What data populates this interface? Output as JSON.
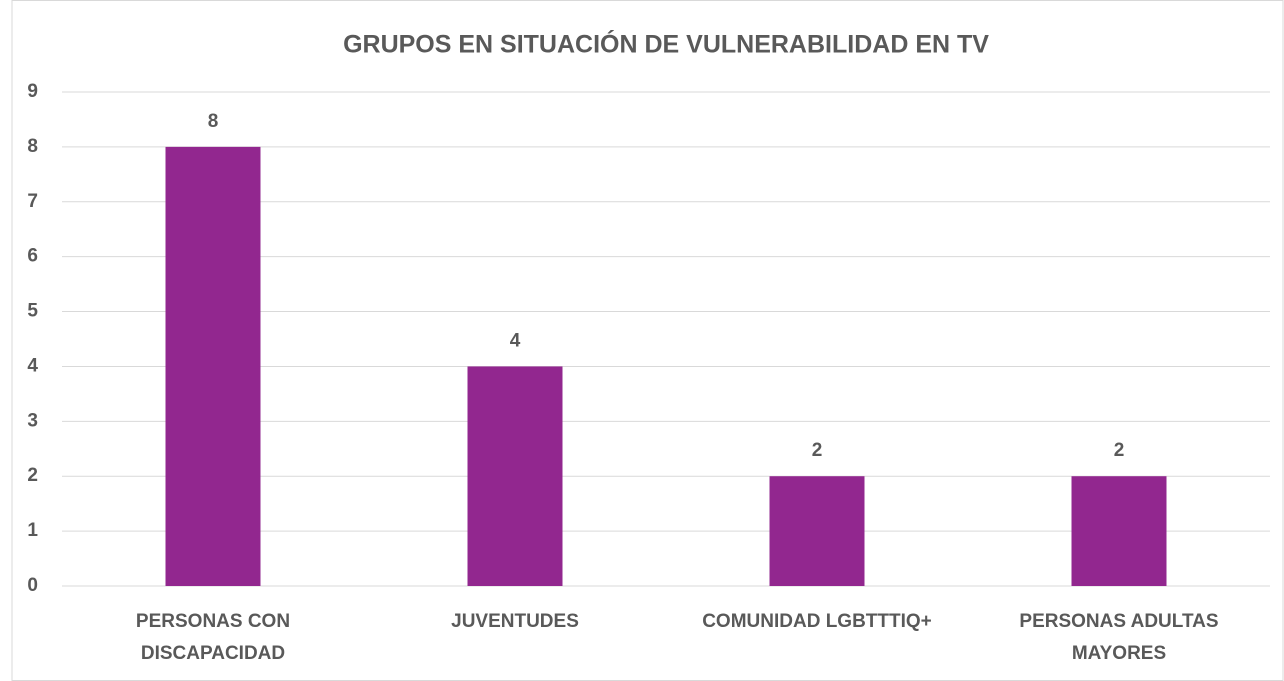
{
  "chart_data": {
    "type": "bar",
    "title": "GRUPOS EN SITUACIÓN DE VULNERABILIDAD EN TV",
    "categories": [
      "PERSONAS CON DISCAPACIDAD",
      "JUVENTUDES",
      "COMUNIDAD LGBTTTIQ+",
      "PERSONAS ADULTAS MAYORES"
    ],
    "values": [
      8,
      4,
      2,
      2
    ],
    "color": "#92278f",
    "ylim": [
      0,
      9
    ],
    "yticks": [
      0,
      1,
      2,
      3,
      4,
      5,
      6,
      7,
      8,
      9
    ],
    "grid": true
  }
}
